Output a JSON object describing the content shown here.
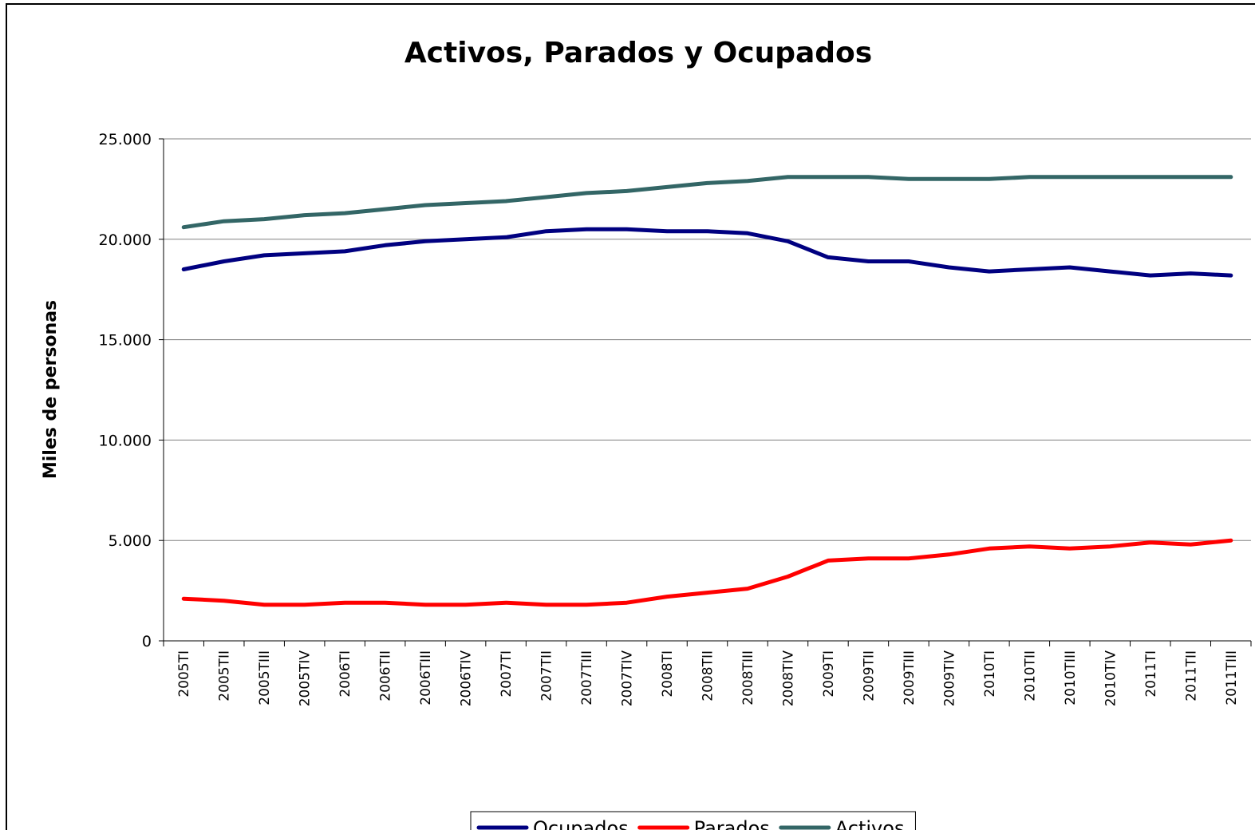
{
  "chart_data": {
    "type": "line",
    "title": "Activos, Parados y Ocupados",
    "y_label": "Miles de personas",
    "categories": [
      "2005TI",
      "2005TII",
      "2005TIII",
      "2005TIV",
      "2006TI",
      "2006TII",
      "2006TIII",
      "2006TIV",
      "2007TI",
      "2007TII",
      "2007TIII",
      "2007TIV",
      "2008TI",
      "2008TII",
      "2008TIII",
      "2008TIV",
      "2009TI",
      "2009TII",
      "2009TIII",
      "2009TIV",
      "2010TI",
      "2010TII",
      "2010TIII",
      "2010TIV",
      "2011TI",
      "2011TII",
      "2011TIII"
    ],
    "series": [
      {
        "name": "Ocupados",
        "color": "#000080",
        "values": [
          18500,
          18900,
          19200,
          19300,
          19400,
          19700,
          19900,
          20000,
          20100,
          20400,
          20500,
          20500,
          20400,
          20400,
          20300,
          19900,
          19100,
          18900,
          18900,
          18600,
          18400,
          18500,
          18600,
          18400,
          18200,
          18300,
          18200
        ]
      },
      {
        "name": "Parados",
        "color": "#ff0000",
        "values": [
          2100,
          2000,
          1800,
          1800,
          1900,
          1900,
          1800,
          1800,
          1900,
          1800,
          1800,
          1900,
          2200,
          2400,
          2600,
          3200,
          4000,
          4100,
          4100,
          4300,
          4600,
          4700,
          4600,
          4700,
          4900,
          4800,
          5000
        ]
      },
      {
        "name": "Activos",
        "color": "#336666",
        "values": [
          20600,
          20900,
          21000,
          21200,
          21300,
          21500,
          21700,
          21800,
          21900,
          22100,
          22300,
          22400,
          22600,
          22800,
          22900,
          23100,
          23100,
          23100,
          23000,
          23000,
          23000,
          23100,
          23100,
          23100,
          23100,
          23100,
          23100
        ]
      }
    ],
    "ylim": [
      0,
      25000
    ],
    "yticks": [
      0,
      {
        "value": 5000,
        "label": "5.000"
      },
      {
        "value": 10000,
        "label": "10.000"
      },
      {
        "value": 15000,
        "label": "15.000"
      },
      {
        "value": 20000,
        "label": "20.000"
      },
      {
        "value": 25000,
        "label": "25.000"
      }
    ],
    "grid": true,
    "legend": "bottom"
  }
}
